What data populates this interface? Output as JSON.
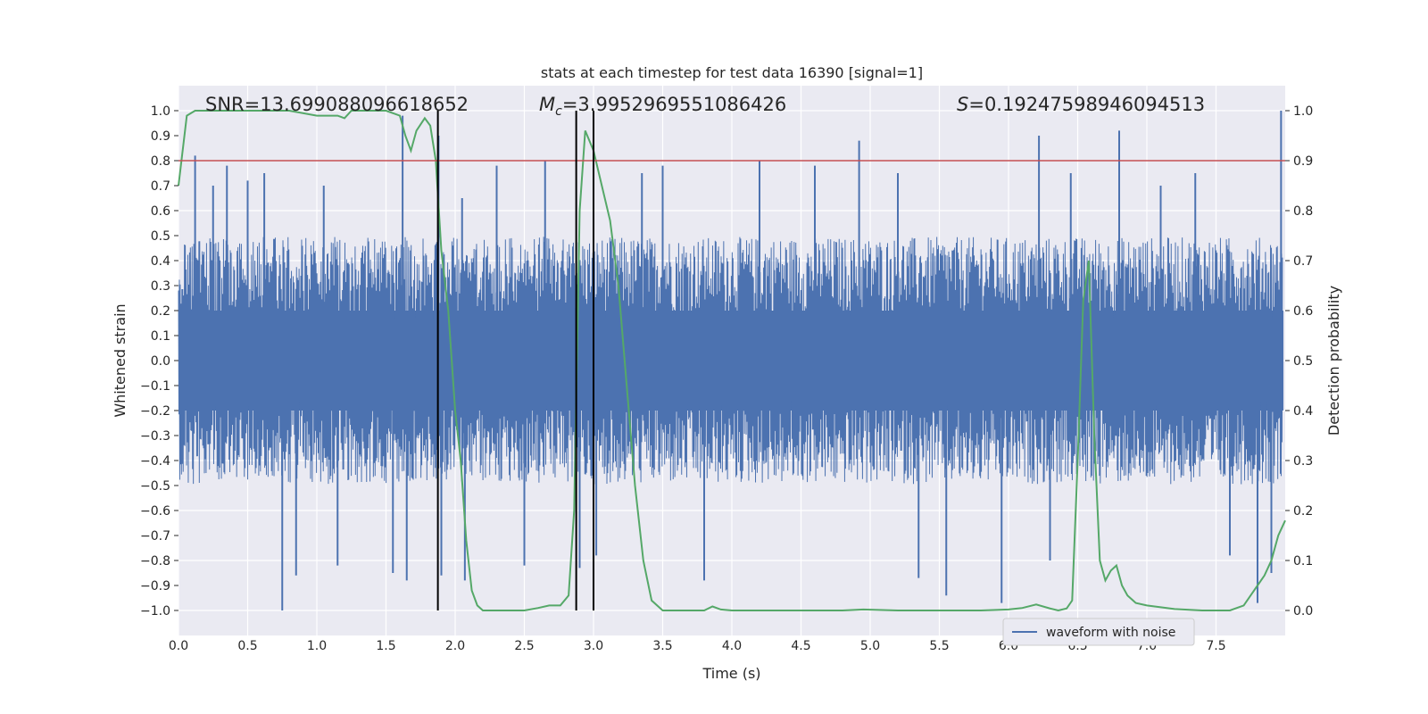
{
  "chart_data": {
    "type": "line",
    "title": "stats at each timestep for test data 16390 [signal=1]",
    "xlabel": "Time (s)",
    "ylabel_left": "Whitened strain",
    "ylabel_right": "Detection probability",
    "xlim": [
      0.0,
      8.0
    ],
    "ylim_left": [
      -1.1,
      1.1
    ],
    "ylim_right": [
      -0.05,
      1.05
    ],
    "x_ticks": [
      "0.0",
      "0.5",
      "1.0",
      "1.5",
      "2.0",
      "2.5",
      "3.0",
      "3.5",
      "4.0",
      "4.5",
      "5.0",
      "5.5",
      "6.0",
      "6.5",
      "7.0",
      "7.5"
    ],
    "y_ticks_left": [
      "1.0",
      "0.9",
      "0.8",
      "0.7",
      "0.6",
      "0.5",
      "0.4",
      "0.3",
      "0.2",
      "0.1",
      "0.0",
      "−0.1",
      "−0.2",
      "−0.3",
      "−0.4",
      "−0.5",
      "−0.6",
      "−0.7",
      "−0.8",
      "−0.9",
      "−1.0"
    ],
    "y_ticks_right": [
      "1.0",
      "0.9",
      "0.8",
      "0.7",
      "0.6",
      "0.5",
      "0.4",
      "0.3",
      "0.2",
      "0.1",
      "0.0"
    ],
    "grid": true,
    "legend": {
      "position": "lower-right",
      "entries": [
        "waveform with noise"
      ]
    },
    "annotations": {
      "snr": "SNR=13.699088096618652",
      "mc_symbol": "M",
      "mc_sub": "c",
      "mc_value": "=3.9952969551086426",
      "s_symbol": "S",
      "s_value": "=0.19247598946094513"
    },
    "threshold_right": 0.9,
    "vertical_lines_x": [
      1.875,
      2.875,
      3.0
    ],
    "series": [
      {
        "name": "waveform with noise",
        "color": "#4c72b0",
        "kind": "noise",
        "envelope_typical": 0.45,
        "peaks": [
          [
            0.12,
            0.82
          ],
          [
            0.25,
            0.7
          ],
          [
            0.35,
            0.78
          ],
          [
            0.5,
            0.72
          ],
          [
            0.62,
            0.75
          ],
          [
            0.75,
            -1.0
          ],
          [
            0.85,
            -0.86
          ],
          [
            1.05,
            0.7
          ],
          [
            1.15,
            -0.82
          ],
          [
            1.55,
            -0.85
          ],
          [
            1.62,
            0.98
          ],
          [
            1.65,
            -0.88
          ],
          [
            1.88,
            0.9
          ],
          [
            1.9,
            -0.86
          ],
          [
            2.05,
            0.65
          ],
          [
            2.07,
            -0.88
          ],
          [
            2.3,
            0.78
          ],
          [
            2.5,
            -0.82
          ],
          [
            2.65,
            0.8
          ],
          [
            2.9,
            -0.83
          ],
          [
            3.0,
            0.72
          ],
          [
            3.02,
            -0.78
          ],
          [
            3.35,
            0.75
          ],
          [
            3.5,
            0.78
          ],
          [
            3.8,
            -0.88
          ],
          [
            4.2,
            0.8
          ],
          [
            4.6,
            0.78
          ],
          [
            4.92,
            0.88
          ],
          [
            5.2,
            0.75
          ],
          [
            5.35,
            -0.87
          ],
          [
            5.55,
            -0.94
          ],
          [
            5.95,
            -0.97
          ],
          [
            6.22,
            0.9
          ],
          [
            6.3,
            -0.8
          ],
          [
            6.45,
            0.75
          ],
          [
            6.8,
            0.92
          ],
          [
            7.1,
            0.7
          ],
          [
            7.35,
            0.75
          ],
          [
            7.6,
            -0.78
          ],
          [
            7.8,
            -0.97
          ],
          [
            7.9,
            -0.85
          ],
          [
            7.97,
            1.0
          ]
        ]
      },
      {
        "name": "detection probability",
        "color": "#55a868",
        "x": [
          0.0,
          0.06,
          0.12,
          0.2,
          0.4,
          0.8,
          1.0,
          1.1,
          1.15,
          1.2,
          1.25,
          1.3,
          1.5,
          1.6,
          1.64,
          1.68,
          1.72,
          1.78,
          1.82,
          1.86,
          1.9,
          1.95,
          2.0,
          2.04,
          2.08,
          2.12,
          2.16,
          2.2,
          2.3,
          2.5,
          2.6,
          2.68,
          2.76,
          2.82,
          2.86,
          2.9,
          2.94,
          3.0,
          3.06,
          3.12,
          3.18,
          3.24,
          3.3,
          3.36,
          3.42,
          3.5,
          3.8,
          3.86,
          3.92,
          4.0,
          4.2,
          4.5,
          4.8,
          4.95,
          5.2,
          5.5,
          5.8,
          6.0,
          6.1,
          6.2,
          6.3,
          6.36,
          6.42,
          6.46,
          6.5,
          6.54,
          6.58,
          6.62,
          6.66,
          6.7,
          6.74,
          6.78,
          6.82,
          6.86,
          6.92,
          7.0,
          7.2,
          7.4,
          7.6,
          7.7,
          7.75,
          7.8,
          7.85,
          7.9,
          7.95,
          8.0
        ],
        "y": [
          0.85,
          0.99,
          1.0,
          1.0,
          1.0,
          1.0,
          0.99,
          0.99,
          0.99,
          0.985,
          1.0,
          1.0,
          1.0,
          0.99,
          0.95,
          0.92,
          0.96,
          0.985,
          0.97,
          0.9,
          0.72,
          0.6,
          0.4,
          0.3,
          0.14,
          0.04,
          0.01,
          0.0,
          0.0,
          0.0,
          0.005,
          0.01,
          0.01,
          0.03,
          0.2,
          0.8,
          0.96,
          0.92,
          0.85,
          0.78,
          0.65,
          0.45,
          0.25,
          0.1,
          0.02,
          0.0,
          0.0,
          0.008,
          0.002,
          0.0,
          0.0,
          0.0,
          0.0,
          0.002,
          0.0,
          0.0,
          0.0,
          0.002,
          0.005,
          0.012,
          0.004,
          0.0,
          0.004,
          0.02,
          0.3,
          0.62,
          0.7,
          0.35,
          0.1,
          0.06,
          0.08,
          0.09,
          0.05,
          0.03,
          0.015,
          0.01,
          0.003,
          0.0,
          0.0,
          0.01,
          0.03,
          0.05,
          0.07,
          0.1,
          0.15,
          0.18
        ]
      }
    ]
  }
}
